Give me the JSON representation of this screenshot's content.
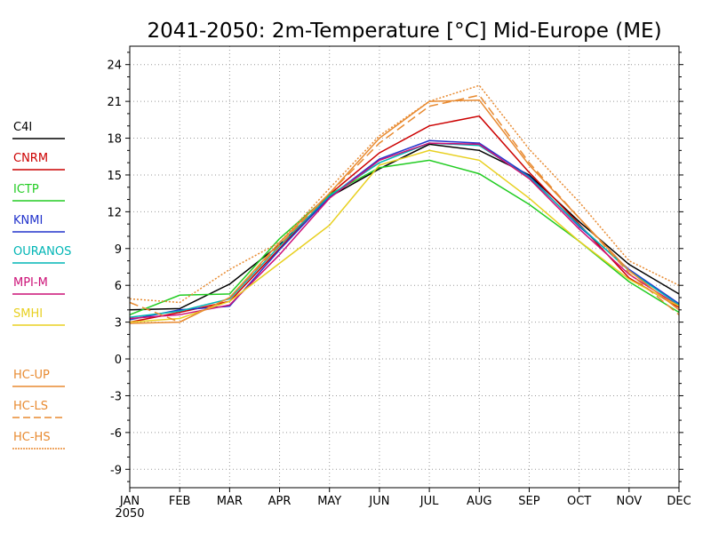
{
  "chart_data": {
    "type": "line",
    "title": "2041-2050: 2m-Temperature [°C] Mid-Europe (ME)",
    "xlabel": "",
    "ylabel": "",
    "categories": [
      "JAN",
      "FEB",
      "MAR",
      "APR",
      "MAY",
      "JUN",
      "JUL",
      "AUG",
      "SEP",
      "OCT",
      "NOV",
      "DEC"
    ],
    "year_label": "2050",
    "ylim": [
      -10.5,
      25.5
    ],
    "yticks": [
      -9,
      -6,
      -3,
      0,
      3,
      6,
      9,
      12,
      15,
      18,
      21,
      24
    ],
    "grid": true,
    "legend_position": "left",
    "series": [
      {
        "name": "C4I",
        "color": "#000000",
        "style": "solid",
        "values": [
          4.0,
          4.1,
          6.1,
          9.3,
          13.2,
          15.5,
          17.5,
          17.0,
          15.0,
          11.2,
          7.7,
          5.3
        ]
      },
      {
        "name": "CNRM",
        "color": "#cc0000",
        "style": "solid",
        "values": [
          3.0,
          3.8,
          4.7,
          9.0,
          13.4,
          16.8,
          19.0,
          19.8,
          15.2,
          11.0,
          6.6,
          4.2
        ]
      },
      {
        "name": "ICTP",
        "color": "#22cc22",
        "style": "solid",
        "values": [
          3.6,
          5.2,
          5.3,
          9.8,
          13.4,
          15.6,
          16.2,
          15.1,
          12.6,
          9.6,
          6.3,
          3.8
        ]
      },
      {
        "name": "KNMI",
        "color": "#2233cc",
        "style": "solid",
        "values": [
          3.2,
          4.0,
          4.3,
          8.9,
          13.2,
          16.3,
          17.8,
          17.6,
          14.9,
          10.8,
          7.3,
          4.5
        ]
      },
      {
        "name": "OURANOS",
        "color": "#00b5b5",
        "style": "solid",
        "values": [
          3.4,
          3.9,
          4.9,
          9.2,
          13.3,
          16.0,
          17.6,
          17.4,
          14.8,
          10.9,
          7.2,
          4.4
        ]
      },
      {
        "name": "MPI-M",
        "color": "#cc1177",
        "style": "solid",
        "values": [
          3.3,
          3.6,
          4.4,
          8.5,
          13.1,
          16.2,
          17.6,
          17.5,
          14.7,
          10.6,
          6.9,
          4.3
        ]
      },
      {
        "name": "SMHI",
        "color": "#e8d020",
        "style": "solid",
        "values": [
          3.0,
          3.3,
          4.7,
          7.8,
          10.9,
          15.8,
          17.0,
          16.2,
          13.1,
          9.6,
          6.5,
          4.3
        ]
      },
      {
        "name": "HC-UP",
        "color": "#e88a30",
        "style": "solid",
        "values": [
          2.9,
          3.0,
          5.0,
          9.5,
          13.5,
          18.0,
          21.0,
          21.1,
          15.8,
          11.5,
          7.2,
          4.0
        ]
      },
      {
        "name": "HC-LS",
        "color": "#e88a30",
        "style": "dashed",
        "values": [
          4.6,
          3.0,
          5.0,
          9.3,
          13.5,
          17.6,
          20.6,
          21.5,
          16.0,
          11.5,
          7.0,
          3.6
        ]
      },
      {
        "name": "HC-HS",
        "color": "#e88a30",
        "style": "dotted",
        "values": [
          4.9,
          4.6,
          7.3,
          9.5,
          13.9,
          18.2,
          21.0,
          22.3,
          17.1,
          12.8,
          8.0,
          6.0
        ]
      }
    ]
  }
}
